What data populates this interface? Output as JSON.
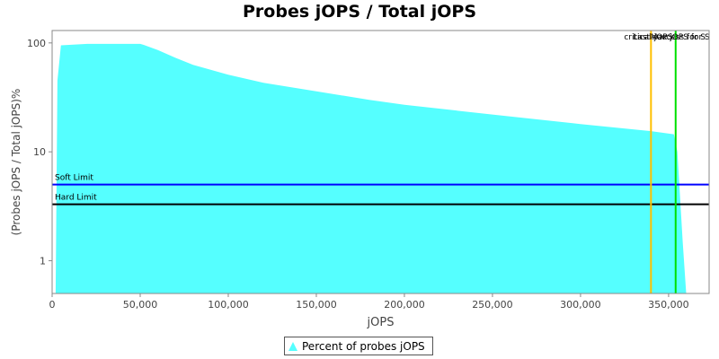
{
  "chart_data": {
    "type": "area",
    "title": "Probes jOPS / Total jOPS",
    "xlabel": "jOPS",
    "ylabel": "(Probes jOPS / Total jOPS)%",
    "y_scale": "log",
    "xlim": [
      0,
      373000
    ],
    "ylim": [
      0.5,
      130
    ],
    "x_ticks": [
      0,
      50000,
      100000,
      150000,
      200000,
      250000,
      300000,
      350000
    ],
    "x_tick_labels": [
      "0",
      "50,000",
      "100,000",
      "150,000",
      "200,000",
      "250,000",
      "300,000",
      "350,000"
    ],
    "y_ticks": [
      1,
      10,
      100
    ],
    "y_tick_labels": [
      "1",
      "10",
      "100"
    ],
    "series": [
      {
        "name": "Percent of probes jOPS",
        "color": "#55ffff",
        "x": [
          2000,
          3000,
          5000,
          20000,
          50000,
          52000,
          60000,
          70000,
          80000,
          100000,
          120000,
          150000,
          180000,
          200000,
          250000,
          300000,
          340000,
          353000,
          355000,
          358000,
          360000,
          373000
        ],
        "y": [
          0.5,
          45,
          95,
          98,
          98,
          96,
          86,
          73,
          63,
          51,
          43,
          36,
          30,
          27,
          22,
          18,
          15.5,
          14.5,
          10,
          1.5,
          0.5,
          0.5
        ]
      }
    ],
    "reference_lines": [
      {
        "name": "Soft Limit",
        "orientation": "horizontal",
        "value": 5,
        "color": "#0000ff"
      },
      {
        "name": "Hard Limit",
        "orientation": "horizontal",
        "value": 3.3,
        "color": "#000000"
      },
      {
        "name": "critical-jOPS",
        "orientation": "vertical",
        "value": 340000,
        "color": "#ffc000"
      },
      {
        "name": "Max jOPS for S",
        "orientation": "vertical",
        "value": 354000,
        "color": "#00e000"
      }
    ],
    "vline_labels_text": [
      "critical-jOPS",
      "Last success for S"
    ],
    "legend": {
      "placement": "bottom-center",
      "label": "Percent of probes jOPS"
    },
    "grid": false
  }
}
